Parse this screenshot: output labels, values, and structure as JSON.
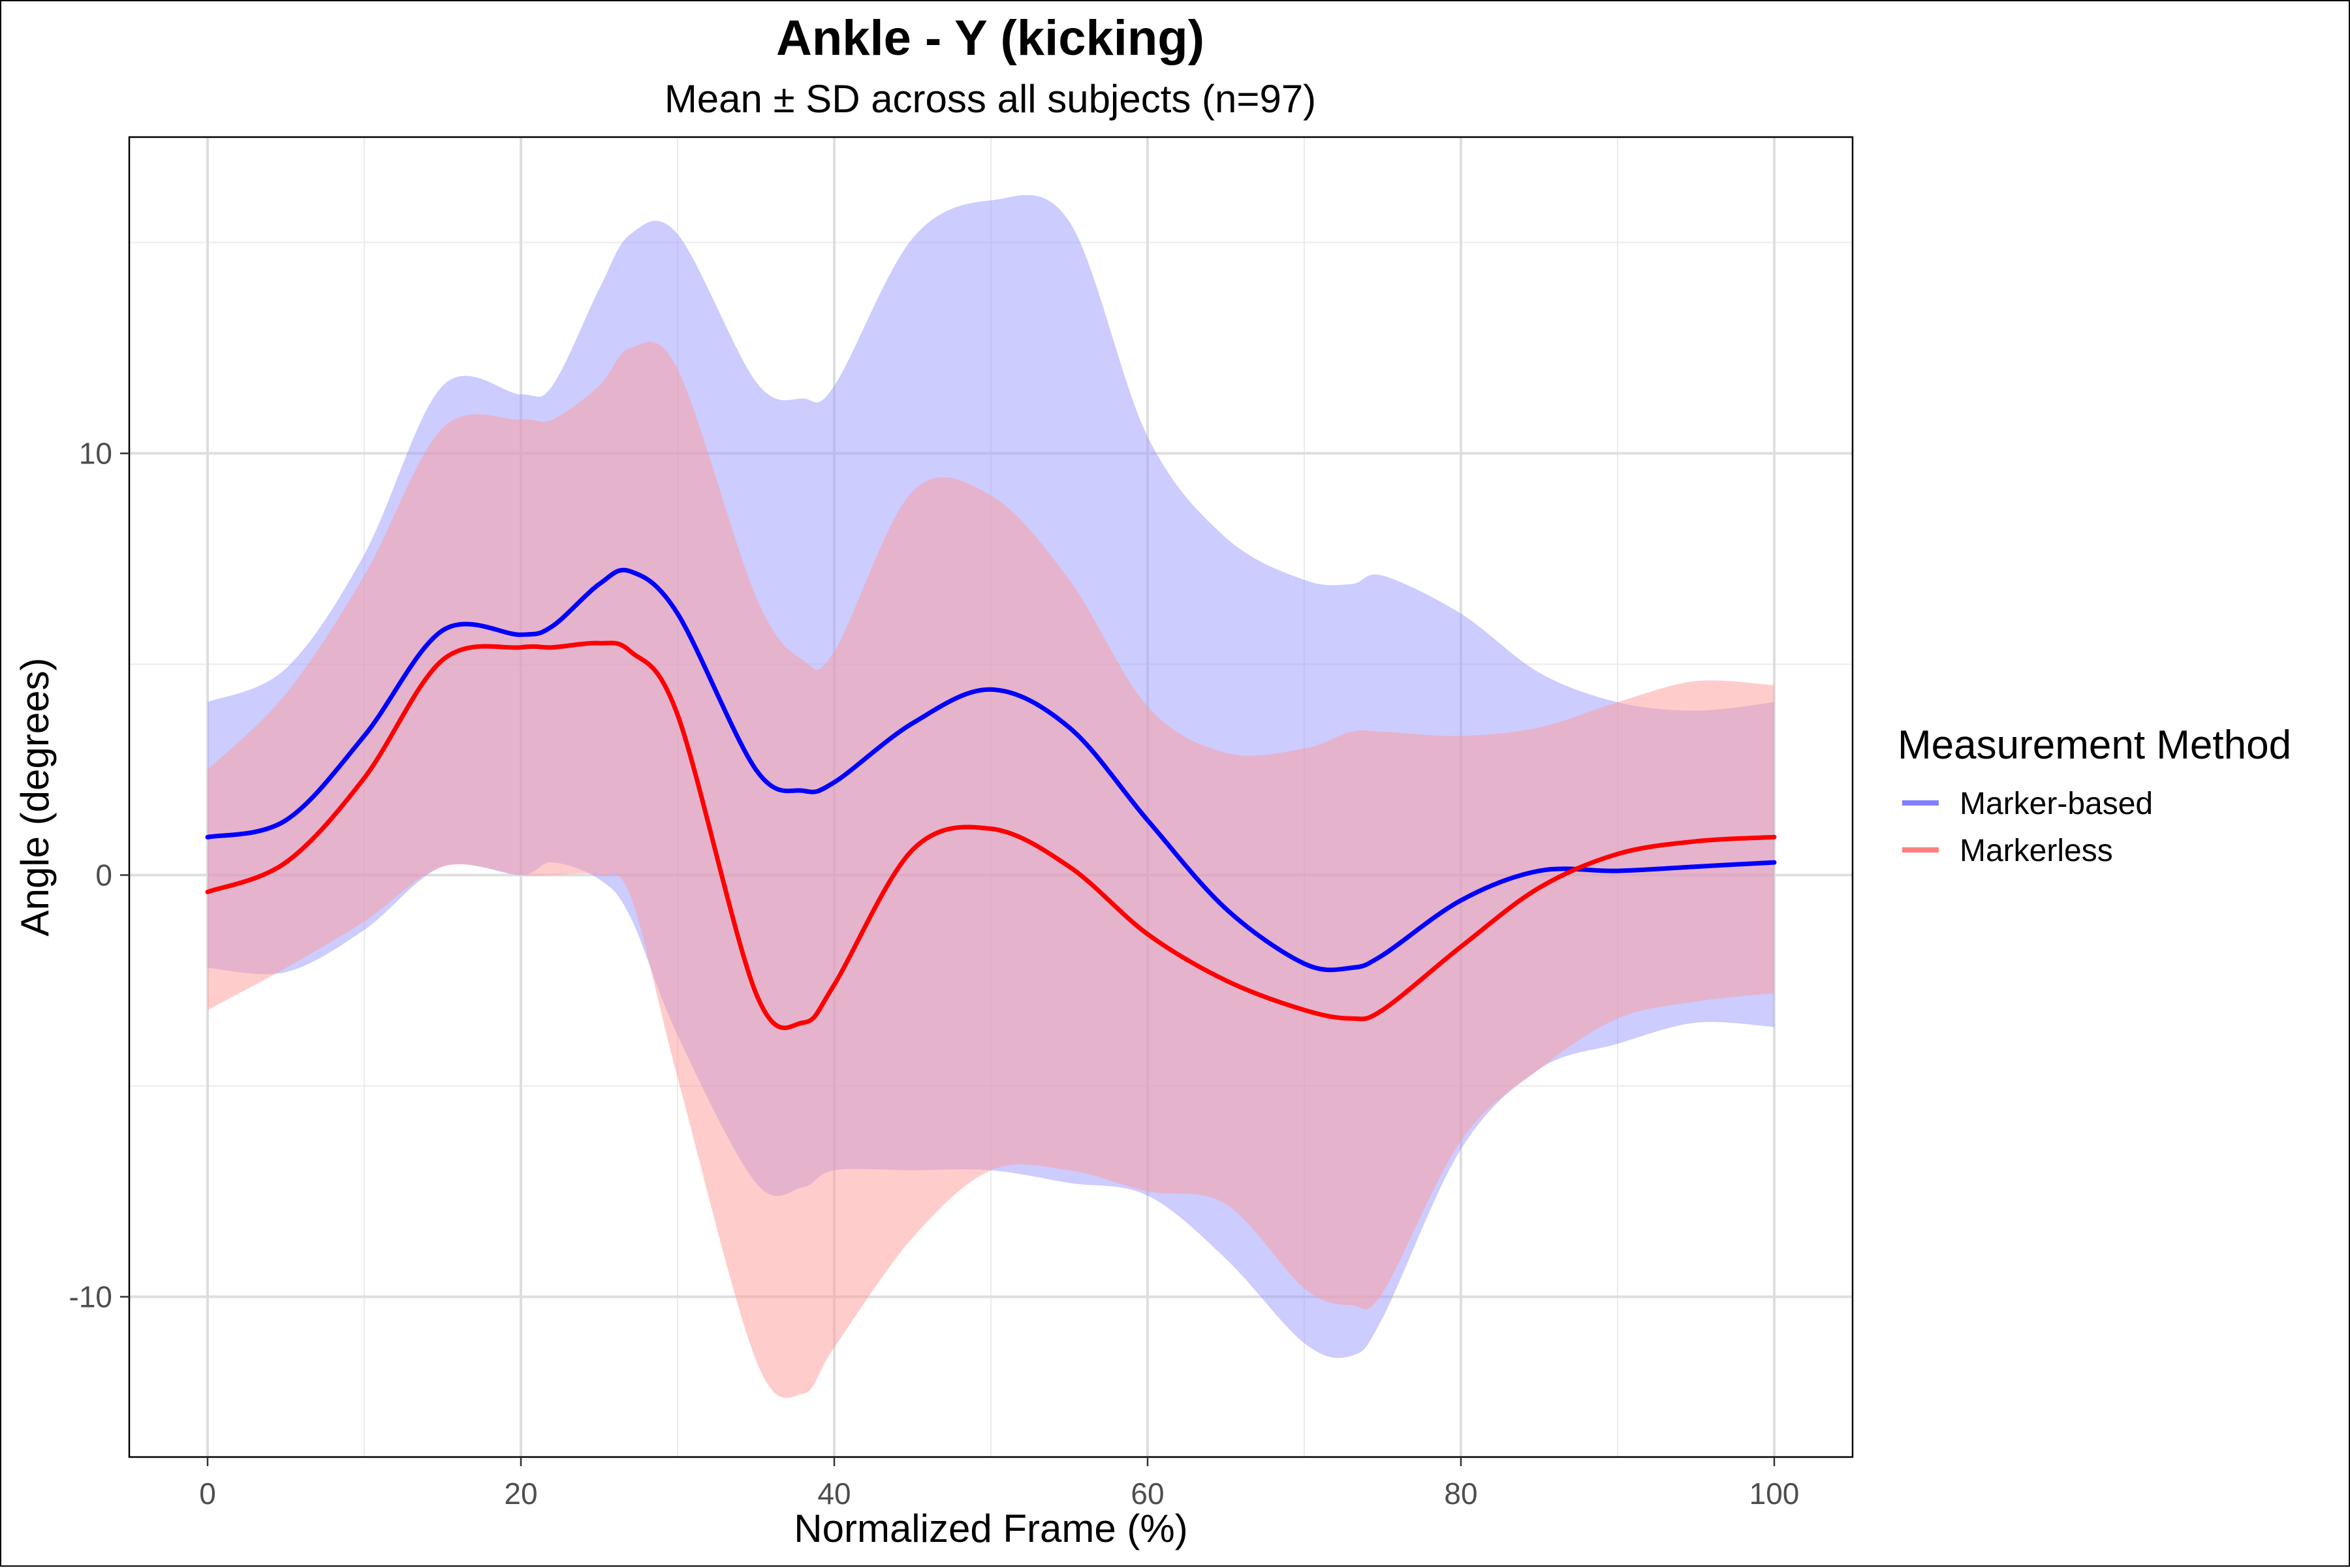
{
  "chart_data": {
    "type": "line",
    "title": "Ankle - Y (kicking)",
    "subtitle": "Mean ± SD across all subjects (n=97)",
    "xlabel": "Normalized Frame (%)",
    "ylabel": "Angle (degrees)",
    "xlim": [
      -5,
      105
    ],
    "ylim": [
      -13.8,
      17.5
    ],
    "x_ticks": [
      0,
      20,
      40,
      60,
      80,
      100
    ],
    "y_ticks": [
      -10,
      0,
      10
    ],
    "x_tick_labels": [
      "0",
      "20",
      "40",
      "60",
      "80",
      "100"
    ],
    "y_tick_labels": [
      "-10",
      "0",
      "10"
    ],
    "grid": true,
    "legend": {
      "title": "Measurement Method",
      "position": "right"
    },
    "x": [
      0,
      5,
      10,
      15,
      20,
      22,
      25,
      27,
      30,
      35,
      38,
      40,
      45,
      50,
      55,
      60,
      65,
      70,
      73,
      75,
      80,
      85,
      90,
      95,
      100
    ],
    "series": [
      {
        "name": "Marker-based",
        "color": "#0000ff",
        "band_color": "#9999ff",
        "mean": [
          0.9,
          1.3,
          3.3,
          5.8,
          5.7,
          5.9,
          6.9,
          7.2,
          6.2,
          2.5,
          2.0,
          2.2,
          3.6,
          4.4,
          3.5,
          1.3,
          -0.8,
          -2.1,
          -2.2,
          -1.9,
          -0.6,
          0.1,
          0.1,
          0.2,
          0.3
        ],
        "upper": [
          4.1,
          4.9,
          7.6,
          11.6,
          11.4,
          11.6,
          13.9,
          15.2,
          15.2,
          11.7,
          11.3,
          11.6,
          15.1,
          16.0,
          15.5,
          10.4,
          8.0,
          7.0,
          6.9,
          7.1,
          6.2,
          4.8,
          4.1,
          3.9,
          4.1
        ],
        "lower": [
          -2.2,
          -2.3,
          -1.3,
          0.2,
          0.0,
          0.3,
          -0.1,
          -1.0,
          -3.8,
          -7.3,
          -7.4,
          -7.0,
          -7.0,
          -7.0,
          -7.3,
          -7.6,
          -9.1,
          -11.1,
          -11.4,
          -10.5,
          -6.5,
          -4.6,
          -4.0,
          -3.5,
          -3.6
        ]
      },
      {
        "name": "Markerless",
        "color": "#ff0000",
        "band_color": "#ff9999",
        "mean": [
          -0.4,
          0.3,
          2.3,
          5.1,
          5.4,
          5.4,
          5.5,
          5.3,
          3.8,
          -2.8,
          -3.5,
          -2.6,
          0.6,
          1.1,
          0.2,
          -1.4,
          -2.5,
          -3.2,
          -3.4,
          -3.2,
          -1.7,
          -0.3,
          0.5,
          0.8,
          0.9
        ],
        "upper": [
          2.5,
          4.3,
          7.1,
          10.6,
          10.8,
          10.8,
          11.6,
          12.5,
          12.0,
          6.6,
          5.1,
          5.3,
          9.1,
          9.0,
          7.0,
          4.0,
          2.9,
          3.0,
          3.4,
          3.4,
          3.3,
          3.5,
          4.1,
          4.6,
          4.5
        ],
        "lower": [
          -3.2,
          -2.2,
          -1.1,
          0.2,
          0.0,
          0.0,
          0.0,
          -0.5,
          -4.8,
          -11.5,
          -12.3,
          -11.2,
          -8.6,
          -7.0,
          -7.0,
          -7.5,
          -7.8,
          -9.8,
          -10.2,
          -9.9,
          -6.3,
          -4.6,
          -3.4,
          -3.0,
          -2.8
        ]
      }
    ]
  }
}
